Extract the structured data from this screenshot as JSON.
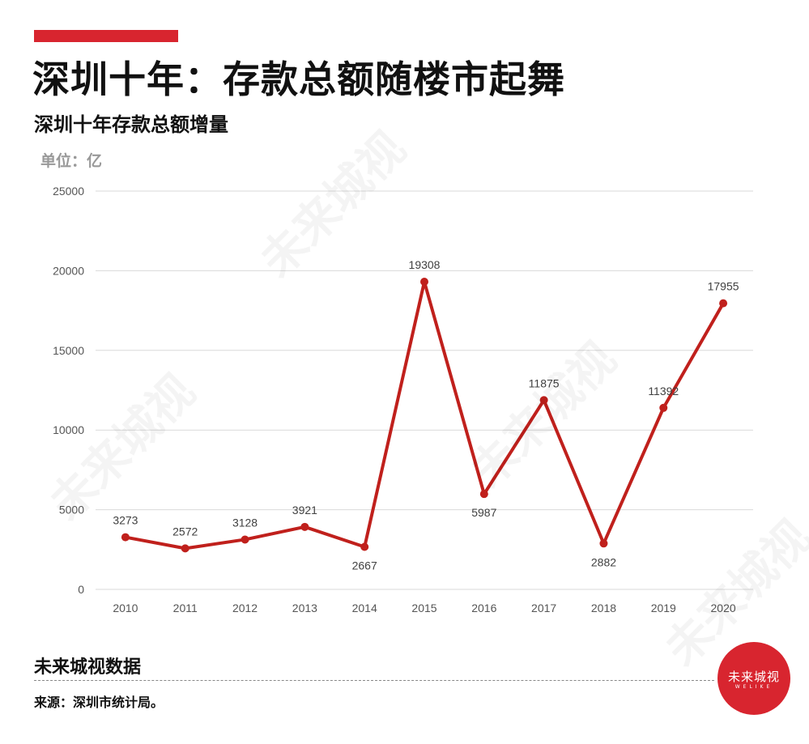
{
  "header": {
    "title": "深圳十年：存款总额随楼市起舞",
    "subtitle": "深圳十年存款总额增量",
    "unit": "单位：亿"
  },
  "footer": {
    "brand_source": "未来城视数据",
    "source_note": "来源：深圳市统计局。"
  },
  "logo": {
    "text_cn": "未来城视",
    "text_en": "WELIKE",
    "color": "#d8252f"
  },
  "watermark": {
    "text": "未来城视"
  },
  "colors": {
    "accent": "#d8252f",
    "line": "#c0201c",
    "grid": "#d9d9d9",
    "tick": "#555555"
  },
  "chart_data": {
    "type": "line",
    "title": "深圳十年存款总额增量",
    "unit": "单位：亿",
    "categories": [
      "2010",
      "2011",
      "2012",
      "2013",
      "2014",
      "2015",
      "2016",
      "2017",
      "2018",
      "2019",
      "2020"
    ],
    "series": [
      {
        "values": [
          3273,
          2572,
          3128,
          3921,
          2667,
          19308,
          5987,
          11875,
          2882,
          11392,
          17955
        ]
      }
    ],
    "y_ticks": [
      "0",
      "5000",
      "10000",
      "15000",
      "20000",
      "25000"
    ],
    "ylim": [
      0,
      25000
    ],
    "grid": true,
    "data_labels": true
  }
}
